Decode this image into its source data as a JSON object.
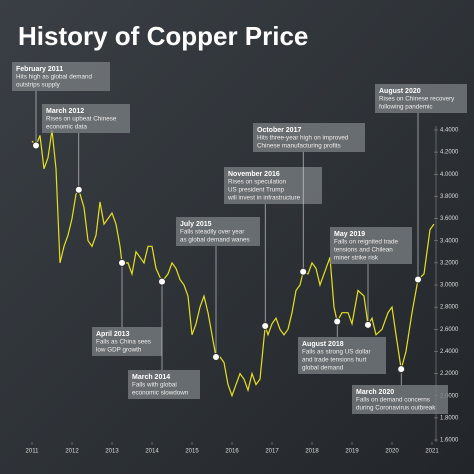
{
  "chart_data": {
    "type": "line",
    "title": "History of Copper Price",
    "x": [
      2011.0,
      2011.1,
      2011.2,
      2011.3,
      2011.4,
      2011.5,
      2011.6,
      2011.7,
      2011.8,
      2011.9,
      2012.0,
      2012.1,
      2012.17,
      2012.3,
      2012.4,
      2012.5,
      2012.6,
      2012.7,
      2012.8,
      2012.9,
      2013.0,
      2013.1,
      2013.2,
      2013.25,
      2013.4,
      2013.5,
      2013.6,
      2013.7,
      2013.8,
      2013.9,
      2014.0,
      2014.1,
      2014.25,
      2014.4,
      2014.5,
      2014.6,
      2014.7,
      2014.8,
      2014.9,
      2015.0,
      2015.1,
      2015.2,
      2015.3,
      2015.4,
      2015.5,
      2015.6,
      2015.7,
      2015.8,
      2015.9,
      2016.0,
      2016.1,
      2016.2,
      2016.3,
      2016.4,
      2016.5,
      2016.6,
      2016.7,
      2016.83,
      2016.9,
      2017.0,
      2017.1,
      2017.2,
      2017.3,
      2017.4,
      2017.5,
      2017.6,
      2017.7,
      2017.78,
      2017.9,
      2018.0,
      2018.1,
      2018.2,
      2018.3,
      2018.45,
      2018.55,
      2018.63,
      2018.75,
      2018.9,
      2019.0,
      2019.15,
      2019.3,
      2019.4,
      2019.5,
      2019.6,
      2019.75,
      2019.9,
      2020.0,
      2020.1,
      2020.23,
      2020.35,
      2020.5,
      2020.65,
      2020.8,
      2020.95,
      2021.05
    ],
    "series": [
      {
        "color": "#e6e020",
        "values": [
          4.3,
          4.26,
          4.35,
          4.05,
          4.15,
          4.4,
          4.05,
          3.2,
          3.35,
          3.45,
          3.6,
          3.82,
          3.86,
          3.7,
          3.4,
          3.35,
          3.45,
          3.75,
          3.55,
          3.6,
          3.65,
          3.55,
          3.35,
          3.2,
          3.2,
          3.1,
          3.3,
          3.25,
          3.2,
          3.35,
          3.35,
          3.15,
          3.03,
          3.1,
          3.2,
          3.15,
          3.05,
          3.0,
          2.9,
          2.55,
          2.65,
          2.8,
          2.9,
          2.75,
          2.55,
          2.35,
          2.35,
          2.3,
          2.1,
          2.0,
          2.1,
          2.2,
          2.15,
          2.05,
          2.2,
          2.1,
          2.15,
          2.63,
          2.55,
          2.65,
          2.7,
          2.6,
          2.55,
          2.6,
          2.75,
          2.95,
          3.0,
          3.12,
          3.1,
          3.2,
          3.15,
          3.0,
          3.1,
          3.25,
          2.8,
          2.67,
          2.75,
          2.75,
          2.65,
          2.95,
          2.9,
          2.64,
          2.7,
          2.55,
          2.6,
          2.75,
          2.8,
          2.55,
          2.24,
          2.4,
          2.75,
          3.05,
          3.1,
          3.5,
          3.55
        ]
      }
    ],
    "xlim": [
      2011,
      2021
    ],
    "xticks": [
      2011,
      2012,
      2013,
      2014,
      2015,
      2016,
      2017,
      2018,
      2019,
      2020,
      2021
    ],
    "ylim": [
      1.6,
      4.4
    ],
    "yticks": [
      {
        "value": 1.6,
        "label": "1.6000"
      },
      {
        "value": 1.8,
        "label": "1.8000"
      },
      {
        "value": 2.0,
        "label": "2.0000"
      },
      {
        "value": 2.2,
        "label": "2.2000"
      },
      {
        "value": 2.4,
        "label": "2.4000"
      },
      {
        "value": 2.6,
        "label": "2.6000"
      },
      {
        "value": 2.8,
        "label": "2.8000"
      },
      {
        "value": 3.0,
        "label": "3.0000"
      },
      {
        "value": 3.2,
        "label": "3.2000"
      },
      {
        "value": 3.4,
        "label": "3.4000"
      },
      {
        "value": 3.6,
        "label": "3.6000"
      },
      {
        "value": 3.8,
        "label": "3.8000"
      },
      {
        "value": 4.0,
        "label": "4.0000"
      },
      {
        "value": 4.2,
        "label": "4.2000"
      },
      {
        "value": 4.4,
        "label": "4.4000"
      }
    ],
    "annotations": [
      {
        "title": "February 2011",
        "lines": [
          "Hits high as global demand",
          "outstrips supply"
        ],
        "x": 2011.1,
        "y": 4.26
      },
      {
        "title": "March 2012",
        "lines": [
          "Rises on upbeat Chinese",
          "economic data"
        ],
        "x": 2012.17,
        "y": 3.86
      },
      {
        "title": "April 2013",
        "lines": [
          "Falls as China sees",
          "low GDP growth"
        ],
        "x": 2013.25,
        "y": 3.2
      },
      {
        "title": "March 2014",
        "lines": [
          "Falls with global",
          "economic slowdown"
        ],
        "x": 2014.25,
        "y": 3.03
      },
      {
        "title": "July 2015",
        "lines": [
          "Falls steadily over year",
          "as global demand wanes"
        ],
        "x": 2015.6,
        "y": 2.35
      },
      {
        "title": "November 2016",
        "lines": [
          "Rises on speculation",
          "US president Trump",
          "will invest in infrastructure"
        ],
        "x": 2016.83,
        "y": 2.63
      },
      {
        "title": "October 2017",
        "lines": [
          "Hits three-year high on improved",
          "Chinese manufacturing profits"
        ],
        "x": 2017.78,
        "y": 3.12
      },
      {
        "title": "August 2018",
        "lines": [
          "Falls as strong US dollar",
          "and trade tensions hurt",
          "global demand"
        ],
        "x": 2018.63,
        "y": 2.67
      },
      {
        "title": "May 2019",
        "lines": [
          "Falls on reignited trade",
          "tensions and Chilean",
          "miner strike risk"
        ],
        "x": 2019.4,
        "y": 2.64
      },
      {
        "title": "March 2020",
        "lines": [
          "Falls on demand concerns",
          "during Coronavirus outbreak"
        ],
        "x": 2020.23,
        "y": 2.24
      },
      {
        "title": "August 2020",
        "lines": [
          "Rises on Chinese recovery",
          "following pandemic"
        ],
        "x": 2020.65,
        "y": 3.05
      }
    ]
  }
}
